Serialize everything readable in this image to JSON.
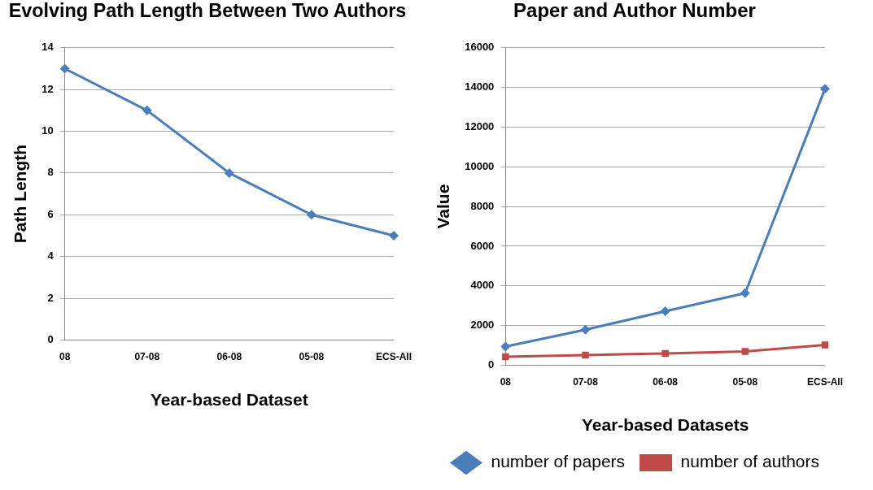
{
  "chart_data": [
    {
      "type": "line",
      "title": "Evolving Path Length Between Two Authors",
      "xlabel": "Year-based Dataset",
      "ylabel": "Path Length",
      "categories": [
        "08",
        "07-08",
        "06-08",
        "05-08",
        "ECS-All"
      ],
      "values": [
        13,
        11,
        8,
        6,
        5
      ],
      "color": "#4a7ebb",
      "marker": "diamond",
      "ylim": [
        0,
        14
      ],
      "yticks": [
        0,
        2,
        4,
        6,
        8,
        10,
        12,
        14
      ],
      "grid": "y",
      "legend": false
    },
    {
      "type": "line",
      "title": "Paper and Author Number",
      "xlabel": "Year-based Datasets",
      "ylabel": "Value",
      "categories": [
        "08",
        "07-08",
        "06-08",
        "05-08",
        "ECS-All"
      ],
      "series": [
        {
          "name": "number of papers",
          "color": "#4a7ebb",
          "marker": "diamond",
          "values": [
            940,
            1790,
            2720,
            3630,
            13930
          ]
        },
        {
          "name": "number of authors",
          "color": "#be4b48",
          "marker": "square",
          "values": [
            430,
            510,
            590,
            690,
            1020
          ]
        }
      ],
      "ylim": [
        0,
        16000
      ],
      "yticks": [
        0,
        2000,
        4000,
        6000,
        8000,
        10000,
        12000,
        14000,
        16000
      ],
      "grid": "y",
      "legend": "bottom"
    }
  ]
}
